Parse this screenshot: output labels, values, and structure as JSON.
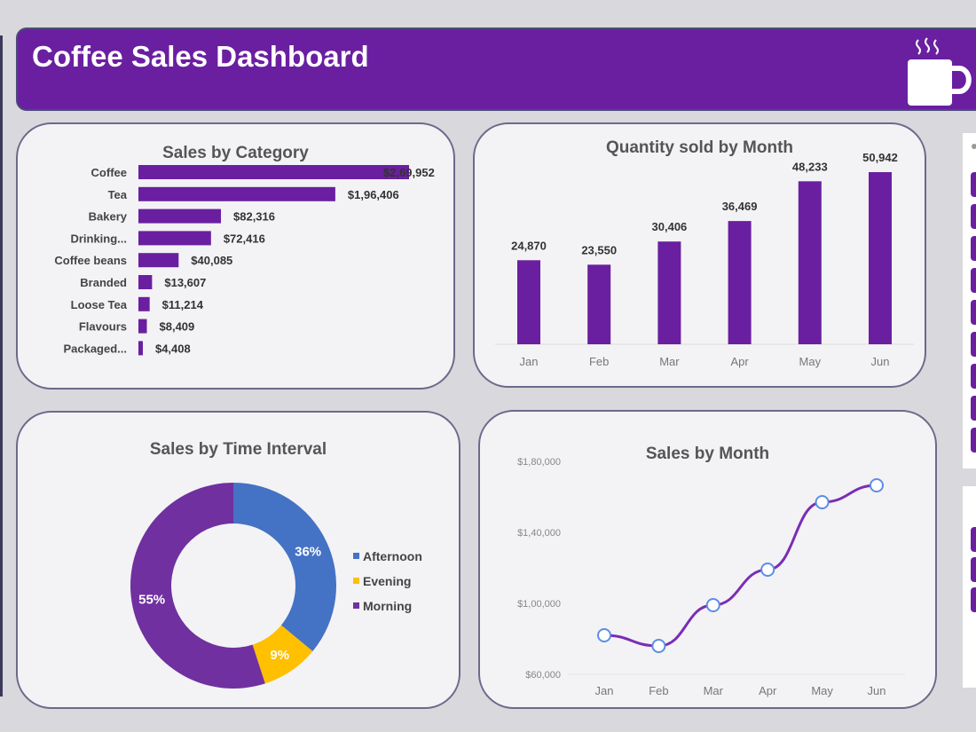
{
  "header": {
    "title": "Coffee Sales Dashboard",
    "icon": "coffee-cup-icon"
  },
  "colors": {
    "accent": "#6a1fa0",
    "afternoon": "#4472c4",
    "evening": "#ffc000",
    "morning": "#7030a0"
  },
  "chart_data": [
    {
      "type": "bar",
      "title": "Sales by Category",
      "orientation": "horizontal",
      "categories": [
        "Coffee",
        "Tea",
        "Bakery",
        "Drinking...",
        "Coffee beans",
        "Branded",
        "Loose Tea",
        "Flavours",
        "Packaged..."
      ],
      "values": [
        269952,
        196406,
        82316,
        72416,
        40085,
        13607,
        11214,
        8409,
        4408
      ],
      "labels": [
        "$2,69,952",
        "$1,96,406",
        "$82,316",
        "$72,416",
        "$40,085",
        "$13,607",
        "$11,214",
        "$8,409",
        "$4,408"
      ]
    },
    {
      "type": "bar",
      "title": "Quantity sold by Month",
      "categories": [
        "Jan",
        "Feb",
        "Mar",
        "Apr",
        "May",
        "Jun"
      ],
      "values": [
        24870,
        23550,
        30406,
        36469,
        48233,
        50942
      ],
      "labels": [
        "24,870",
        "23,550",
        "30,406",
        "36,469",
        "48,233",
        "50,942"
      ]
    },
    {
      "type": "pie",
      "title": "Sales by Time Interval",
      "donut": true,
      "categories": [
        "Afternoon",
        "Evening",
        "Morning"
      ],
      "values": [
        36,
        9,
        55
      ],
      "labels": [
        "36%",
        "9%",
        "55%"
      ],
      "legend": "right"
    },
    {
      "type": "line",
      "title": "Sales by Month",
      "categories": [
        "Jan",
        "Feb",
        "Mar",
        "Apr",
        "May",
        "Jun"
      ],
      "values": [
        82000,
        76000,
        99000,
        119000,
        157000,
        166500
      ],
      "yticks": [
        60000,
        100000,
        140000,
        180000
      ],
      "ytick_labels": [
        "$60,000",
        "$1,00,000",
        "$1,40,000",
        "$1,80,000"
      ],
      "ylim": [
        60000,
        180000
      ]
    }
  ]
}
